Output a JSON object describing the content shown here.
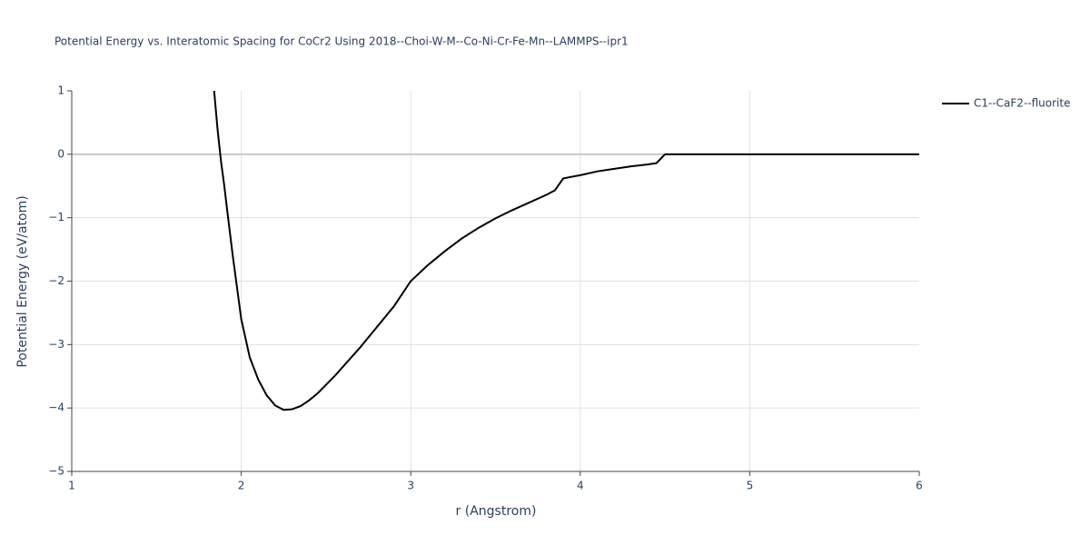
{
  "chart_data": {
    "type": "line",
    "title": "Potential Energy vs. Interatomic Spacing for CoCr2 Using 2018--Choi-W-M--Co-Ni-Cr-Fe-Mn--LAMMPS--ipr1",
    "x_label": "r (Angstrom)",
    "y_label": "Potential Energy (eV/atom)",
    "x": [
      1.84,
      1.86,
      1.88,
      1.9,
      1.92,
      1.95,
      1.98,
      2.0,
      2.05,
      2.1,
      2.15,
      2.2,
      2.25,
      2.3,
      2.35,
      2.4,
      2.45,
      2.55,
      2.7,
      2.9,
      3.0,
      3.1,
      3.2,
      3.3,
      3.4,
      3.5,
      3.6,
      3.7,
      3.8,
      3.85,
      3.9,
      4.0,
      4.1,
      4.2,
      4.3,
      4.4,
      4.45,
      4.5,
      5.0,
      6.0
    ],
    "series": [
      {
        "name": "C1--CaF2--fluorite",
        "color": "#000000",
        "values": [
          1.0,
          0.4,
          -0.1,
          -0.5,
          -0.95,
          -1.6,
          -2.2,
          -2.6,
          -3.2,
          -3.55,
          -3.8,
          -3.96,
          -4.03,
          -4.02,
          -3.97,
          -3.88,
          -3.77,
          -3.5,
          -3.05,
          -2.4,
          -2.0,
          -1.75,
          -1.53,
          -1.33,
          -1.16,
          -1.01,
          -0.88,
          -0.76,
          -0.64,
          -0.57,
          -0.38,
          -0.33,
          -0.27,
          -0.23,
          -0.19,
          -0.16,
          -0.14,
          0,
          0,
          0
        ]
      }
    ],
    "xlim": [
      1,
      6
    ],
    "xticks": [
      1,
      2,
      3,
      4,
      5,
      6
    ],
    "ylim": [
      -5,
      1
    ],
    "yticks": [
      1,
      0,
      {
        "value": -1,
        "label": "−1"
      },
      {
        "value": -2,
        "label": "−2"
      },
      {
        "value": -3,
        "label": "−3"
      },
      {
        "value": -4,
        "label": "−4"
      },
      {
        "value": -5,
        "label": "−5"
      }
    ],
    "grid": true,
    "legend": "right"
  }
}
